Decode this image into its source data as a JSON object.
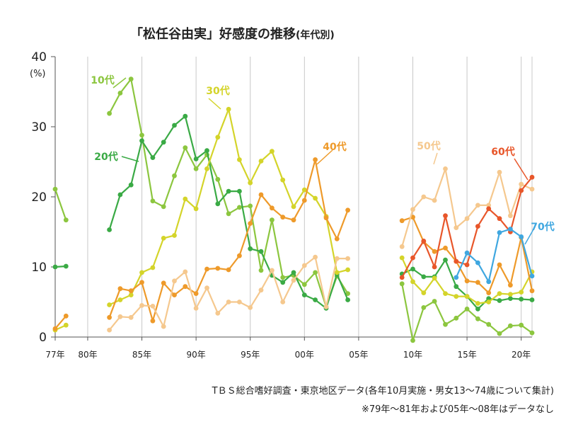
{
  "chart_data": {
    "type": "line",
    "title": "「松任谷由実」好感度の推移",
    "title_suffix": "(年代別)",
    "ylabel": "(%)",
    "ylim": [
      0,
      40
    ],
    "yticks": [
      0,
      10,
      20,
      30,
      40
    ],
    "xlim": [
      1977,
      2021
    ],
    "xticks": [
      {
        "x": 1977,
        "label": "77年"
      },
      {
        "x": 1980,
        "label": "80年"
      },
      {
        "x": 1985,
        "label": "85年"
      },
      {
        "x": 1990,
        "label": "90年"
      },
      {
        "x": 1995,
        "label": "95年"
      },
      {
        "x": 2000,
        "label": "00年"
      },
      {
        "x": 2005,
        "label": "05年"
      },
      {
        "x": 2010,
        "label": "10年"
      },
      {
        "x": 2015,
        "label": "15年"
      },
      {
        "x": 2020,
        "label": "20年"
      }
    ],
    "grid": "vertical",
    "series": [
      {
        "name": "10代",
        "color": "#8cc63f",
        "segments": [
          [
            [
              1977,
              21.1
            ],
            [
              1978,
              16.7
            ]
          ],
          [
            [
              1982,
              31.9
            ],
            [
              1983,
              34.8
            ],
            [
              1984,
              36.8
            ],
            [
              1985,
              28.8
            ],
            [
              1986,
              19.4
            ],
            [
              1987,
              18.6
            ],
            [
              1988,
              23.0
            ],
            [
              1989,
              27.0
            ],
            [
              1990,
              24.0
            ],
            [
              1991,
              26.0
            ],
            [
              1992,
              22.5
            ],
            [
              1993,
              17.6
            ],
            [
              1994,
              18.5
            ],
            [
              1995,
              18.7
            ],
            [
              1996,
              9.5
            ],
            [
              1997,
              16.7
            ],
            [
              1998,
              8.5
            ],
            [
              1999,
              8.8
            ],
            [
              2000,
              7.5
            ],
            [
              2001,
              9.2
            ],
            [
              2002,
              4.3
            ],
            [
              2003,
              8.7
            ],
            [
              2004,
              6.2
            ]
          ],
          [
            [
              2009,
              7.6
            ],
            [
              2010,
              -0.5
            ],
            [
              2011,
              4.2
            ],
            [
              2012,
              5.1
            ],
            [
              2013,
              1.8
            ],
            [
              2014,
              2.7
            ],
            [
              2015,
              4.0
            ],
            [
              2016,
              2.6
            ],
            [
              2017,
              1.8
            ],
            [
              2018,
              0.5
            ],
            [
              2019,
              1.6
            ],
            [
              2020,
              1.7
            ],
            [
              2021,
              0.6
            ]
          ]
        ]
      },
      {
        "name": "20代",
        "color": "#3aaa45",
        "segments": [
          [
            [
              1977,
              10.0
            ],
            [
              1978,
              10.1
            ]
          ],
          [
            [
              1982,
              15.3
            ],
            [
              1983,
              20.3
            ],
            [
              1984,
              21.7
            ],
            [
              1985,
              28.0
            ],
            [
              1986,
              25.6
            ],
            [
              1987,
              27.8
            ],
            [
              1988,
              30.2
            ],
            [
              1989,
              31.5
            ],
            [
              1990,
              25.4
            ],
            [
              1991,
              26.6
            ],
            [
              1992,
              19.0
            ],
            [
              1993,
              20.8
            ],
            [
              1994,
              20.8
            ],
            [
              1995,
              12.6
            ],
            [
              1996,
              12.2
            ],
            [
              1997,
              8.8
            ],
            [
              1998,
              7.8
            ],
            [
              1999,
              9.2
            ],
            [
              2000,
              6.0
            ],
            [
              2001,
              5.3
            ],
            [
              2002,
              4.1
            ],
            [
              2003,
              9.0
            ],
            [
              2004,
              5.3
            ]
          ],
          [
            [
              2009,
              9.0
            ],
            [
              2010,
              9.7
            ],
            [
              2011,
              8.6
            ],
            [
              2012,
              8.6
            ],
            [
              2013,
              11.0
            ],
            [
              2014,
              7.2
            ],
            [
              2015,
              5.8
            ],
            [
              2016,
              4.0
            ],
            [
              2017,
              5.5
            ],
            [
              2018,
              5.2
            ],
            [
              2019,
              5.5
            ],
            [
              2020,
              5.4
            ],
            [
              2021,
              5.3
            ]
          ]
        ]
      },
      {
        "name": "30代",
        "color": "#d4d42a",
        "segments": [
          [
            [
              1977,
              1.0
            ],
            [
              1978,
              1.7
            ]
          ],
          [
            [
              1982,
              4.6
            ],
            [
              1983,
              5.3
            ],
            [
              1984,
              6.0
            ],
            [
              1985,
              9.2
            ],
            [
              1986,
              9.9
            ],
            [
              1987,
              14.1
            ],
            [
              1988,
              14.5
            ],
            [
              1989,
              19.7
            ],
            [
              1990,
              18.3
            ],
            [
              1991,
              24.0
            ],
            [
              1992,
              28.5
            ],
            [
              1993,
              32.5
            ],
            [
              1994,
              25.3
            ],
            [
              1995,
              22.0
            ],
            [
              1996,
              25.1
            ],
            [
              1997,
              26.5
            ],
            [
              1998,
              22.4
            ],
            [
              1999,
              18.6
            ],
            [
              2000,
              21.0
            ],
            [
              2001,
              19.8
            ],
            [
              2002,
              17.2
            ],
            [
              2003,
              9.2
            ],
            [
              2004,
              9.6
            ]
          ],
          [
            [
              2009,
              11.3
            ],
            [
              2010,
              7.9
            ],
            [
              2011,
              6.3
            ],
            [
              2012,
              8.4
            ],
            [
              2013,
              6.2
            ],
            [
              2014,
              5.8
            ],
            [
              2015,
              5.8
            ],
            [
              2016,
              4.8
            ],
            [
              2017,
              5.0
            ],
            [
              2018,
              6.2
            ],
            [
              2019,
              6.1
            ],
            [
              2020,
              6.4
            ],
            [
              2021,
              9.3
            ]
          ]
        ]
      },
      {
        "name": "40代",
        "color": "#ee9a2a",
        "segments": [
          [
            [
              1977,
              1.2
            ],
            [
              1978,
              3.0
            ]
          ],
          [
            [
              1982,
              2.8
            ],
            [
              1983,
              6.9
            ],
            [
              1984,
              6.6
            ],
            [
              1985,
              7.8
            ],
            [
              1986,
              2.3
            ],
            [
              1987,
              7.7
            ],
            [
              1988,
              6.0
            ],
            [
              1989,
              7.2
            ],
            [
              1990,
              6.2
            ],
            [
              1991,
              9.7
            ],
            [
              1992,
              9.8
            ],
            [
              1993,
              9.6
            ],
            [
              1994,
              11.6
            ],
            [
              1995,
              16.2
            ],
            [
              1996,
              20.3
            ],
            [
              1997,
              18.4
            ],
            [
              1998,
              17.1
            ],
            [
              1999,
              16.7
            ],
            [
              2000,
              19.5
            ],
            [
              2001,
              25.3
            ],
            [
              2002,
              17.0
            ],
            [
              2003,
              14.0
            ],
            [
              2004,
              18.1
            ]
          ],
          [
            [
              2009,
              16.6
            ],
            [
              2010,
              17.1
            ],
            [
              2011,
              13.6
            ],
            [
              2012,
              12.2
            ],
            [
              2013,
              12.7
            ],
            [
              2014,
              10.8
            ],
            [
              2015,
              8.0
            ],
            [
              2016,
              7.8
            ],
            [
              2017,
              6.3
            ],
            [
              2018,
              10.3
            ],
            [
              2019,
              7.4
            ],
            [
              2020,
              14.2
            ],
            [
              2021,
              6.6
            ]
          ]
        ]
      },
      {
        "name": "50代",
        "color": "#f5c88e",
        "segments": [
          [
            [
              1982,
              1.0
            ],
            [
              1983,
              2.9
            ],
            [
              1984,
              2.8
            ],
            [
              1985,
              4.5
            ],
            [
              1986,
              4.4
            ],
            [
              1987,
              1.5
            ],
            [
              1988,
              8.0
            ],
            [
              1989,
              9.3
            ],
            [
              1990,
              4.1
            ],
            [
              1991,
              7.0
            ],
            [
              1992,
              3.4
            ],
            [
              1993,
              5.0
            ],
            [
              1994,
              5.0
            ],
            [
              1995,
              4.2
            ],
            [
              1996,
              6.7
            ],
            [
              1997,
              9.5
            ],
            [
              1998,
              5.0
            ],
            [
              1999,
              8.1
            ],
            [
              2000,
              10.2
            ],
            [
              2001,
              11.4
            ],
            [
              2002,
              4.3
            ],
            [
              2003,
              11.2
            ],
            [
              2004,
              11.2
            ]
          ],
          [
            [
              2009,
              12.9
            ],
            [
              2010,
              18.2
            ],
            [
              2011,
              20.0
            ],
            [
              2012,
              19.5
            ],
            [
              2013,
              24.0
            ],
            [
              2014,
              15.6
            ],
            [
              2015,
              16.9
            ],
            [
              2016,
              18.8
            ],
            [
              2017,
              18.8
            ],
            [
              2018,
              23.5
            ],
            [
              2019,
              17.3
            ],
            [
              2020,
              21.8
            ],
            [
              2021,
              21.1
            ]
          ]
        ]
      },
      {
        "name": "60代",
        "color": "#e8562a",
        "segments": [
          [
            [
              2009,
              8.5
            ],
            [
              2010,
              11.3
            ],
            [
              2011,
              13.7
            ],
            [
              2012,
              10.0
            ],
            [
              2013,
              17.3
            ],
            [
              2014,
              10.8
            ],
            [
              2015,
              10.3
            ],
            [
              2016,
              15.8
            ],
            [
              2017,
              18.3
            ],
            [
              2018,
              16.9
            ],
            [
              2019,
              15.0
            ],
            [
              2020,
              20.9
            ],
            [
              2021,
              22.8
            ]
          ]
        ]
      },
      {
        "name": "70代",
        "color": "#3fa7e0",
        "segments": [
          [
            [
              2014,
              8.5
            ],
            [
              2015,
              12.0
            ],
            [
              2016,
              10.6
            ],
            [
              2017,
              7.9
            ],
            [
              2018,
              14.9
            ],
            [
              2019,
              15.4
            ],
            [
              2020,
              14.3
            ],
            [
              2021,
              8.7
            ]
          ]
        ]
      }
    ],
    "annotations": [
      "TＢＳ総合嗜好調査・東京地区データ(各年10月実施・男女13～74歳について集計)",
      "※79年～81年および05年～08年はデータなし"
    ]
  }
}
